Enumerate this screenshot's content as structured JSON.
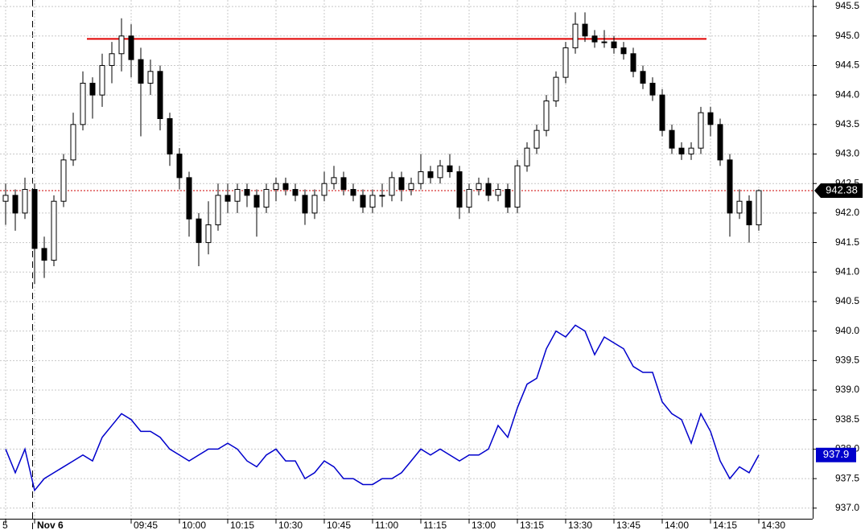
{
  "chart_data": {
    "type": "candlestick",
    "categories": [
      "5",
      null,
      null,
      "Nov 6",
      null,
      null,
      null,
      null,
      null,
      null,
      null,
      null,
      null,
      "09:45",
      null,
      null,
      null,
      null,
      "10:00",
      null,
      null,
      null,
      null,
      "10:15",
      null,
      null,
      null,
      null,
      "10:30",
      null,
      null,
      null,
      null,
      "10:45",
      null,
      null,
      null,
      null,
      "11:00",
      null,
      null,
      null,
      null,
      "11:15",
      null,
      null,
      null,
      null,
      "13:00",
      null,
      null,
      null,
      null,
      "13:15",
      null,
      null,
      null,
      null,
      "13:30",
      null,
      null,
      null,
      null,
      "13:45",
      null,
      null,
      null,
      null,
      "14:00",
      null,
      null,
      null,
      null,
      "14:15",
      null,
      null,
      null,
      null,
      "14:30"
    ],
    "open": [
      942.2,
      942.3,
      942.0,
      942.4,
      941.4,
      941.2,
      942.2,
      942.9,
      943.5,
      944.2,
      944.0,
      944.5,
      944.7,
      945.0,
      944.6,
      944.2,
      944.4,
      943.6,
      943.0,
      942.6,
      941.9,
      941.5,
      941.8,
      942.3,
      942.2,
      942.4,
      942.3,
      942.1,
      942.4,
      942.5,
      942.4,
      942.3,
      942.0,
      942.3,
      942.5,
      942.6,
      942.4,
      942.3,
      942.1,
      942.3,
      942.3,
      942.6,
      942.4,
      942.5,
      942.7,
      942.6,
      942.8,
      942.7,
      942.1,
      942.4,
      942.5,
      942.3,
      942.4,
      942.1,
      942.8,
      943.1,
      943.4,
      943.9,
      944.3,
      944.8,
      945.2,
      945.0,
      944.9,
      944.9,
      944.8,
      944.7,
      944.4,
      944.2,
      944.0,
      943.4,
      943.1,
      943.0,
      943.1,
      943.7,
      943.5,
      942.9,
      942.0,
      942.2,
      941.8
    ],
    "high": [
      942.5,
      942.4,
      942.6,
      942.5,
      941.6,
      942.3,
      943.0,
      943.7,
      944.4,
      944.3,
      944.7,
      944.9,
      945.3,
      945.2,
      944.8,
      944.6,
      944.5,
      943.7,
      943.1,
      942.7,
      942.0,
      942.2,
      942.5,
      942.5,
      942.5,
      942.5,
      942.4,
      942.5,
      942.6,
      942.6,
      942.5,
      942.4,
      942.4,
      942.7,
      942.8,
      942.7,
      942.5,
      942.4,
      942.4,
      942.5,
      942.7,
      942.7,
      942.6,
      943.0,
      942.8,
      942.9,
      943.0,
      942.8,
      942.5,
      942.6,
      942.6,
      942.5,
      942.5,
      942.9,
      943.2,
      943.5,
      944.0,
      944.4,
      944.9,
      945.4,
      945.4,
      945.1,
      945.1,
      945.0,
      944.9,
      944.8,
      944.5,
      944.3,
      944.1,
      943.5,
      943.2,
      943.2,
      943.8,
      943.8,
      943.6,
      943.0,
      942.4,
      942.3,
      942.4
    ],
    "low": [
      941.8,
      941.7,
      941.9,
      940.8,
      940.9,
      941.1,
      942.1,
      942.8,
      943.4,
      943.6,
      943.8,
      944.2,
      944.4,
      944.3,
      943.3,
      944.0,
      943.4,
      942.8,
      942.4,
      941.6,
      941.1,
      941.3,
      941.7,
      942.0,
      942.0,
      942.1,
      941.6,
      942.0,
      942.2,
      942.3,
      942.2,
      941.8,
      941.9,
      942.2,
      942.4,
      942.3,
      942.2,
      942.0,
      942.0,
      942.1,
      942.2,
      942.2,
      942.3,
      942.4,
      942.5,
      942.5,
      942.6,
      941.9,
      942.0,
      942.3,
      942.2,
      942.2,
      942.0,
      942.0,
      942.7,
      943.0,
      943.3,
      943.8,
      944.2,
      944.7,
      944.9,
      944.8,
      944.8,
      944.7,
      944.6,
      944.3,
      944.1,
      943.9,
      943.3,
      943.0,
      942.9,
      942.9,
      943.0,
      943.3,
      942.8,
      941.6,
      941.9,
      941.5,
      941.7
    ],
    "close": [
      942.3,
      942.0,
      942.4,
      941.4,
      941.2,
      942.2,
      942.9,
      943.5,
      944.2,
      944.0,
      944.5,
      944.7,
      945.0,
      944.6,
      944.2,
      944.4,
      943.6,
      943.0,
      942.6,
      941.9,
      941.5,
      941.8,
      942.3,
      942.2,
      942.4,
      942.3,
      942.1,
      942.4,
      942.5,
      942.4,
      942.3,
      942.0,
      942.3,
      942.5,
      942.6,
      942.4,
      942.3,
      942.1,
      942.3,
      942.3,
      942.6,
      942.4,
      942.5,
      942.7,
      942.6,
      942.8,
      942.7,
      942.1,
      942.4,
      942.5,
      942.3,
      942.4,
      942.1,
      942.8,
      943.1,
      943.4,
      943.9,
      944.3,
      944.8,
      945.2,
      945.0,
      944.9,
      944.9,
      944.8,
      944.7,
      944.4,
      944.2,
      944.0,
      943.4,
      943.1,
      943.0,
      943.1,
      943.7,
      943.5,
      942.9,
      942.0,
      942.2,
      941.8,
      942.38
    ],
    "line": {
      "color": "#0000cc",
      "values": [
        938.0,
        937.6,
        938.0,
        937.3,
        937.5,
        937.6,
        937.7,
        937.8,
        937.9,
        937.8,
        938.2,
        938.4,
        938.6,
        938.5,
        938.3,
        938.3,
        938.2,
        938.0,
        937.9,
        937.8,
        937.9,
        938.0,
        938.0,
        938.1,
        938.0,
        937.8,
        937.7,
        937.9,
        938.0,
        937.8,
        937.8,
        937.5,
        937.6,
        937.8,
        937.7,
        937.5,
        937.5,
        937.4,
        937.4,
        937.5,
        937.5,
        937.6,
        937.8,
        938.0,
        937.9,
        938.0,
        937.9,
        937.8,
        937.9,
        937.9,
        938.0,
        938.4,
        938.2,
        938.7,
        939.1,
        939.2,
        939.7,
        940.0,
        939.9,
        940.1,
        940.0,
        939.6,
        939.9,
        939.8,
        939.7,
        939.4,
        939.3,
        939.3,
        938.8,
        938.6,
        938.5,
        938.1,
        938.6,
        938.3,
        937.8,
        937.5,
        937.7,
        937.6,
        937.9
      ]
    },
    "reference_line": {
      "value": 944.95,
      "color": "#e00000"
    },
    "ylim": [
      936.82,
      945.61
    ],
    "yticks": [
      {
        "value": 937,
        "label": "937.0"
      },
      937.5,
      {
        "value": 938,
        "label": "938.0"
      },
      938.5,
      {
        "value": 939,
        "label": "939.0"
      },
      939.5,
      {
        "value": 940,
        "label": "940.0"
      },
      940.5,
      {
        "value": 941,
        "label": "941.0"
      },
      941.5,
      {
        "value": 942,
        "label": "942.0"
      },
      942.5,
      {
        "value": 943,
        "label": "943.0"
      },
      943.5,
      {
        "value": 944,
        "label": "944.0"
      },
      944.5,
      {
        "value": 945,
        "label": "945.0"
      },
      945.5
    ],
    "grid": true
  }
}
